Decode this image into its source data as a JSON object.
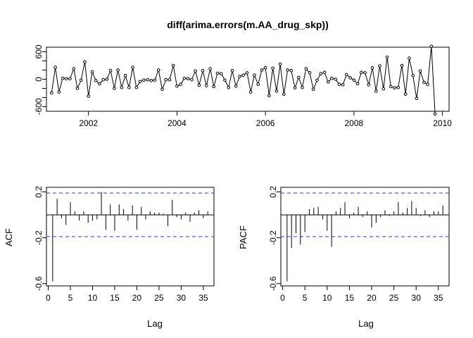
{
  "chart_data": [
    {
      "type": "line",
      "title": "diff(arima.errors(m.AA_drug_skp))",
      "xlabel": "",
      "ylabel": "",
      "xlim": [
        2001.05,
        2010.15
      ],
      "ylim": [
        -700,
        700
      ],
      "x_ticks": [
        2002,
        2004,
        2006,
        2008,
        2010
      ],
      "x_tick_labels": [
        "2002",
        "2004",
        "2006",
        "2008",
        "2010"
      ],
      "y_ticks": [
        -600,
        -400,
        -200,
        0,
        200,
        400,
        600
      ],
      "y_tick_labels": [
        "-600",
        "",
        "",
        "0",
        "",
        "",
        "600"
      ],
      "x_start": 2001.1667,
      "x_step": 0.0833333,
      "values": [
        -300,
        260,
        -280,
        20,
        10,
        10,
        230,
        -200,
        -20,
        380,
        -370,
        160,
        -30,
        -100,
        -10,
        0,
        190,
        -200,
        200,
        -180,
        80,
        -180,
        260,
        -180,
        -50,
        -20,
        -10,
        -30,
        -20,
        200,
        -220,
        -10,
        -10,
        300,
        -150,
        -110,
        20,
        10,
        -10,
        180,
        -130,
        190,
        -140,
        230,
        -160,
        130,
        120,
        -20,
        -180,
        190,
        -150,
        60,
        90,
        140,
        -280,
        90,
        -110,
        200,
        250,
        -360,
        240,
        -260,
        330,
        -330,
        200,
        190,
        -190,
        40,
        -180,
        230,
        140,
        -220,
        -20,
        120,
        150,
        -60,
        20,
        0,
        -110,
        -120,
        100,
        30,
        -20,
        -100,
        150,
        140,
        -120,
        250,
        -260,
        290,
        -210,
        480,
        -160,
        -190,
        -180,
        300,
        -330,
        460,
        80,
        -420,
        180,
        -70,
        -110,
        720,
        -760
      ]
    },
    {
      "type": "bar",
      "title": "",
      "xlabel": "Lag",
      "ylabel": "ACF",
      "xlim": [
        -0.4,
        37.4
      ],
      "ylim": [
        -0.62,
        0.24
      ],
      "x_ticks": [
        0,
        5,
        10,
        15,
        20,
        25,
        30,
        35
      ],
      "x_tick_labels": [
        "0",
        "5",
        "10",
        "15",
        "20",
        "25",
        "30",
        "35"
      ],
      "y_ticks": [
        -0.6,
        -0.2,
        0.2
      ],
      "y_tick_labels": [
        "-0.6",
        "-0.2",
        "0.2"
      ],
      "conf_limit": 0.19,
      "lags": [
        1,
        2,
        3,
        4,
        5,
        6,
        7,
        8,
        9,
        10,
        11,
        12,
        13,
        14,
        15,
        16,
        17,
        18,
        19,
        20,
        21,
        22,
        23,
        24,
        25,
        26,
        27,
        28,
        29,
        30,
        31,
        32,
        33,
        34,
        35,
        36
      ],
      "values": [
        -0.58,
        0.14,
        -0.03,
        -0.09,
        0.11,
        0.03,
        -0.05,
        0.03,
        -0.07,
        -0.05,
        -0.04,
        0.2,
        -0.13,
        0.09,
        -0.14,
        0.09,
        0.05,
        -0.05,
        0.08,
        -0.13,
        0.07,
        -0.04,
        0.03,
        0.02,
        0.02,
        0.01,
        -0.1,
        0.13,
        -0.02,
        -0.04,
        0.02,
        -0.06,
        0.02,
        0.04,
        -0.03,
        0.03
      ]
    },
    {
      "type": "bar",
      "title": "",
      "xlabel": "Lag",
      "ylabel": "PACF",
      "xlim": [
        -0.4,
        37.4
      ],
      "ylim": [
        -0.62,
        0.24
      ],
      "x_ticks": [
        0,
        5,
        10,
        15,
        20,
        25,
        30,
        35
      ],
      "x_tick_labels": [
        "0",
        "5",
        "10",
        "15",
        "20",
        "25",
        "30",
        "35"
      ],
      "y_ticks": [
        -0.6,
        -0.2,
        0.2
      ],
      "y_tick_labels": [
        "-0.6",
        "-0.2",
        "0.2"
      ],
      "conf_limit": 0.19,
      "lags": [
        1,
        2,
        3,
        4,
        5,
        6,
        7,
        8,
        9,
        10,
        11,
        12,
        13,
        14,
        15,
        16,
        17,
        18,
        19,
        20,
        21,
        22,
        23,
        24,
        25,
        26,
        27,
        28,
        29,
        30,
        31,
        32,
        33,
        34,
        35,
        36
      ],
      "values": [
        -0.58,
        -0.29,
        -0.16,
        -0.26,
        -0.15,
        0.05,
        0.06,
        0.07,
        -0.04,
        -0.14,
        -0.28,
        0.03,
        0.06,
        0.11,
        -0.03,
        0.02,
        0.07,
        -0.02,
        0.03,
        -0.11,
        -0.07,
        -0.02,
        0.04,
        -0.01,
        0.03,
        0.11,
        0.02,
        0.06,
        0.12,
        0.06,
        -0.01,
        0.04,
        -0.02,
        0.03,
        0.03,
        0.08
      ]
    }
  ]
}
